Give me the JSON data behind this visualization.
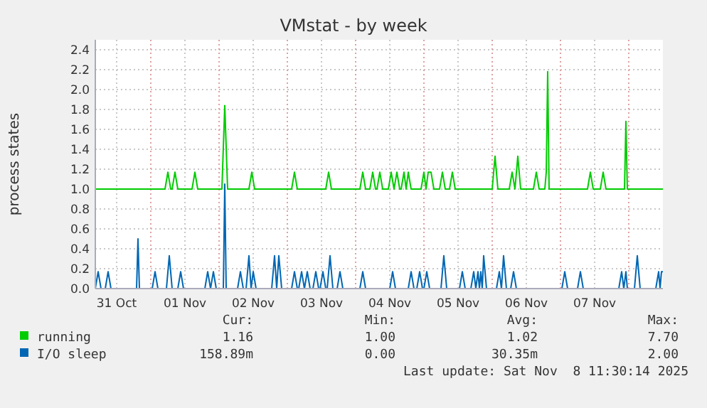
{
  "chart_data": {
    "type": "line",
    "title": "VMstat - by week",
    "ylabel": "process states",
    "xlim": [
      "2025-10-31T04:30",
      "2025-11-08T12:00"
    ],
    "xticks": [
      {
        "value": "2025-10-31T12:00",
        "label": "31 Oct"
      },
      {
        "value": "2025-11-01T00:00",
        "label": null
      },
      {
        "value": "2025-11-01T12:00",
        "label": "01 Nov"
      },
      {
        "value": "2025-11-02T00:00",
        "label": null
      },
      {
        "value": "2025-11-02T12:00",
        "label": "02 Nov"
      },
      {
        "value": "2025-11-03T00:00",
        "label": null
      },
      {
        "value": "2025-11-03T12:00",
        "label": "03 Nov"
      },
      {
        "value": "2025-11-04T00:00",
        "label": null
      },
      {
        "value": "2025-11-04T12:00",
        "label": "04 Nov"
      },
      {
        "value": "2025-11-05T00:00",
        "label": null
      },
      {
        "value": "2025-11-05T12:00",
        "label": "05 Nov"
      },
      {
        "value": "2025-11-06T00:00",
        "label": null
      },
      {
        "value": "2025-11-06T12:00",
        "label": "06 Nov"
      },
      {
        "value": "2025-11-07T00:00",
        "label": null
      },
      {
        "value": "2025-11-07T12:00",
        "label": "07 Nov"
      },
      {
        "value": "2025-11-08T00:00",
        "label": null
      }
    ],
    "ylim": [
      0,
      2.5
    ],
    "yticks": [
      {
        "value": 0,
        "label": "0.0"
      },
      {
        "value": 0.2,
        "label": "0.2"
      },
      {
        "value": 0.4,
        "label": "0.4"
      },
      {
        "value": 0.6,
        "label": "0.6"
      },
      {
        "value": 0.8,
        "label": "0.8"
      },
      {
        "value": 1,
        "label": "1.0"
      },
      {
        "value": 1.2,
        "label": "1.2"
      },
      {
        "value": 1.4,
        "label": "1.4"
      },
      {
        "value": 1.6,
        "label": "1.6"
      },
      {
        "value": 1.8,
        "label": "1.8"
      },
      {
        "value": 2,
        "label": "2.0"
      },
      {
        "value": 2.2,
        "label": "2.2"
      },
      {
        "value": 2.4,
        "label": "2.4"
      }
    ],
    "grid": true,
    "legend": "bottom",
    "marker": "none",
    "line_style": "solid",
    "series": [
      {
        "name": "running",
        "color": "#00cc00",
        "x": [
          "2025-10-31T04:30",
          "2025-11-01T05:00",
          "2025-11-01T06:00",
          "2025-11-01T07:00",
          "2025-11-01T07:30",
          "2025-11-01T08:30",
          "2025-11-01T09:30",
          "2025-11-01T14:30",
          "2025-11-01T15:30",
          "2025-11-01T16:30",
          "2025-11-02T01:00",
          "2025-11-02T02:00",
          "2025-11-02T03:00",
          "2025-11-02T10:30",
          "2025-11-02T11:30",
          "2025-11-02T12:30",
          "2025-11-03T01:30",
          "2025-11-03T02:30",
          "2025-11-03T03:30",
          "2025-11-03T13:30",
          "2025-11-03T14:30",
          "2025-11-03T15:30",
          "2025-11-04T01:30",
          "2025-11-04T02:30",
          "2025-11-04T03:30",
          "2025-11-04T05:00",
          "2025-11-04T06:00",
          "2025-11-04T07:00",
          "2025-11-04T07:30",
          "2025-11-04T08:30",
          "2025-11-04T09:30",
          "2025-11-04T11:30",
          "2025-11-04T12:30",
          "2025-11-04T13:30",
          "2025-11-04T14:30",
          "2025-11-04T15:30",
          "2025-11-04T16:00",
          "2025-11-04T17:00",
          "2025-11-04T17:45",
          "2025-11-04T18:30",
          "2025-11-04T19:30",
          "2025-11-04T23:00",
          "2025-11-05T00:00",
          "2025-11-05T00:45",
          "2025-11-05T01:30",
          "2025-11-05T02:30",
          "2025-11-05T03:30",
          "2025-11-05T05:30",
          "2025-11-05T06:30",
          "2025-11-05T07:30",
          "2025-11-05T09:00",
          "2025-11-05T10:00",
          "2025-11-05T11:00",
          "2025-11-06T00:00",
          "2025-11-06T01:00",
          "2025-11-06T02:00",
          "2025-11-06T06:00",
          "2025-11-06T07:00",
          "2025-11-06T08:00",
          "2025-11-06T09:00",
          "2025-11-06T10:00",
          "2025-11-06T14:30",
          "2025-11-06T15:30",
          "2025-11-06T16:30",
          "2025-11-06T18:30",
          "2025-11-06T19:00",
          "2025-11-06T19:30",
          "2025-11-06T20:00",
          "2025-11-07T09:30",
          "2025-11-07T10:30",
          "2025-11-07T11:30",
          "2025-11-07T14:00",
          "2025-11-07T15:00",
          "2025-11-07T16:00",
          "2025-11-07T22:30",
          "2025-11-07T23:00",
          "2025-11-07T23:30",
          "2025-11-08T12:00"
        ],
        "values": [
          1,
          1,
          1.17,
          1,
          1,
          1.17,
          1,
          1,
          1.17,
          1,
          1,
          1.84,
          1,
          1,
          1.17,
          1,
          1,
          1.17,
          1,
          1,
          1.17,
          1,
          1,
          1.17,
          1,
          1,
          1.17,
          1,
          1,
          1.17,
          1,
          1,
          1.17,
          1,
          1.17,
          1,
          1,
          1.17,
          1,
          1.17,
          1,
          1,
          1.17,
          1,
          1.17,
          1.17,
          1,
          1,
          1.17,
          1,
          1,
          1.17,
          1,
          1,
          1.33,
          1,
          1,
          1.17,
          1,
          1.33,
          1,
          1,
          1.17,
          1,
          1,
          1.17,
          2.18,
          1,
          1,
          1.17,
          1,
          1,
          1.17,
          1,
          1,
          1.68,
          1,
          1
        ]
      },
      {
        "name": "I/O sleep",
        "color": "#0066b3",
        "x": [
          "2025-10-31T04:30",
          "2025-10-31T05:30",
          "2025-10-31T06:30",
          "2025-10-31T08:00",
          "2025-10-31T09:00",
          "2025-10-31T10:00",
          "2025-10-31T19:00",
          "2025-10-31T19:30",
          "2025-10-31T20:00",
          "2025-11-01T00:30",
          "2025-11-01T01:30",
          "2025-11-01T02:30",
          "2025-11-01T05:30",
          "2025-11-01T06:30",
          "2025-11-01T07:30",
          "2025-11-01T09:30",
          "2025-11-01T10:30",
          "2025-11-01T11:30",
          "2025-11-01T19:00",
          "2025-11-01T20:00",
          "2025-11-01T21:00",
          "2025-11-01T22:00",
          "2025-11-01T23:00",
          "2025-11-02T01:30",
          "2025-11-02T02:00",
          "2025-11-02T02:30",
          "2025-11-02T06:30",
          "2025-11-02T07:30",
          "2025-11-02T08:30",
          "2025-11-02T09:30",
          "2025-11-02T10:30",
          "2025-11-02T11:15",
          "2025-11-02T12:00",
          "2025-11-02T13:00",
          "2025-11-02T18:30",
          "2025-11-02T19:30",
          "2025-11-02T20:15",
          "2025-11-02T21:00",
          "2025-11-02T22:00",
          "2025-11-03T01:30",
          "2025-11-03T02:30",
          "2025-11-03T03:30",
          "2025-11-03T04:00",
          "2025-11-03T05:00",
          "2025-11-03T06:00",
          "2025-11-03T07:00",
          "2025-11-03T08:00",
          "2025-11-03T09:00",
          "2025-11-03T10:00",
          "2025-11-03T11:00",
          "2025-11-03T11:30",
          "2025-11-03T12:30",
          "2025-11-03T13:30",
          "2025-11-03T14:00",
          "2025-11-03T15:00",
          "2025-11-03T16:00",
          "2025-11-03T17:30",
          "2025-11-03T18:30",
          "2025-11-03T19:30",
          "2025-11-04T01:30",
          "2025-11-04T02:30",
          "2025-11-04T03:30",
          "2025-11-04T12:00",
          "2025-11-04T13:00",
          "2025-11-04T14:00",
          "2025-11-04T18:30",
          "2025-11-04T19:30",
          "2025-11-04T20:30",
          "2025-11-04T21:30",
          "2025-11-04T22:30",
          "2025-11-04T23:30",
          "2025-11-05T00:00",
          "2025-11-05T01:00",
          "2025-11-05T02:00",
          "2025-11-05T06:00",
          "2025-11-05T07:00",
          "2025-11-05T08:00",
          "2025-11-05T12:30",
          "2025-11-05T13:30",
          "2025-11-05T14:30",
          "2025-11-05T16:30",
          "2025-11-05T17:30",
          "2025-11-05T18:15",
          "2025-11-05T19:00",
          "2025-11-05T19:30",
          "2025-11-05T20:00",
          "2025-11-05T20:30",
          "2025-11-05T21:00",
          "2025-11-05T22:00",
          "2025-11-06T01:30",
          "2025-11-06T02:30",
          "2025-11-06T03:15",
          "2025-11-06T04:00",
          "2025-11-06T05:00",
          "2025-11-06T06:30",
          "2025-11-06T07:30",
          "2025-11-06T08:30",
          "2025-11-07T00:30",
          "2025-11-07T01:30",
          "2025-11-07T02:30",
          "2025-11-07T06:00",
          "2025-11-07T07:00",
          "2025-11-07T08:00",
          "2025-11-07T20:30",
          "2025-11-07T21:30",
          "2025-11-07T22:15",
          "2025-11-07T23:00",
          "2025-11-07T23:30",
          "2025-11-08T02:00",
          "2025-11-08T03:00",
          "2025-11-08T04:00",
          "2025-11-08T09:30",
          "2025-11-08T10:30",
          "2025-11-08T11:00",
          "2025-11-08T11:30",
          "2025-11-08T12:00"
        ],
        "values": [
          0,
          0.17,
          0,
          0,
          0.17,
          0,
          0,
          0.5,
          0,
          0,
          0.17,
          0,
          0,
          0.33,
          0,
          0,
          0.17,
          0,
          0,
          0.17,
          0,
          0.17,
          0,
          0,
          1.05,
          0,
          0,
          0.17,
          0,
          0,
          0.33,
          0,
          0.17,
          0,
          0,
          0.33,
          0,
          0.33,
          0,
          0,
          0.17,
          0,
          0,
          0.17,
          0,
          0.17,
          0,
          0,
          0.17,
          0,
          0,
          0.17,
          0,
          0,
          0.33,
          0,
          0,
          0.17,
          0,
          0,
          0.17,
          0,
          0,
          0.17,
          0,
          0,
          0.17,
          0,
          0,
          0.17,
          0,
          0,
          0.17,
          0,
          0,
          0.33,
          0,
          0,
          0.17,
          0,
          0,
          0.17,
          0,
          0.17,
          0,
          0.17,
          0,
          0.33,
          0,
          0,
          0.17,
          0,
          0.33,
          0,
          0,
          0.17,
          0,
          0,
          0.17,
          0,
          0,
          0.17,
          0,
          0,
          0.17,
          0,
          0.17,
          0,
          0,
          0.33,
          0,
          0,
          0.17,
          0,
          0.17,
          0.17
        ]
      }
    ],
    "annotations": [
      "Cur:",
      "Min:",
      "Avg:",
      "Max:",
      "1.16",
      "1.00",
      "1.02",
      "7.70",
      "158.89m",
      "0.00",
      "30.35m",
      "2.00",
      "Last update: Sat Nov  8 11:30:14 2025"
    ]
  }
}
